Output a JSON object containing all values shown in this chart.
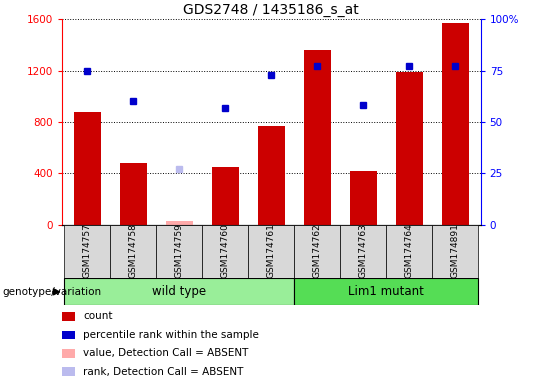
{
  "title": "GDS2748 / 1435186_s_at",
  "samples": [
    "GSM174757",
    "GSM174758",
    "GSM174759",
    "GSM174760",
    "GSM174761",
    "GSM174762",
    "GSM174763",
    "GSM174764",
    "GSM174891"
  ],
  "count": [
    880,
    480,
    30,
    450,
    770,
    1360,
    420,
    1190,
    1570
  ],
  "percentile": [
    75,
    60,
    27,
    57,
    73,
    77,
    58,
    77,
    77
  ],
  "absent": [
    false,
    false,
    true,
    false,
    false,
    false,
    false,
    false,
    false
  ],
  "wild_type_indices": [
    0,
    1,
    2,
    3,
    4
  ],
  "lim1_mutant_indices": [
    5,
    6,
    7,
    8
  ],
  "ylim_left": [
    0,
    1600
  ],
  "ylim_right": [
    0,
    100
  ],
  "yticks_left": [
    0,
    400,
    800,
    1200,
    1600
  ],
  "yticks_right": [
    0,
    25,
    50,
    75,
    100
  ],
  "bar_color_normal": "#cc0000",
  "bar_color_absent": "#ffaaaa",
  "rank_color_normal": "#0000cc",
  "rank_color_absent": "#bbbbee",
  "bg_color": "#d8d8d8",
  "wt_color": "#99ee99",
  "mut_color": "#55dd55",
  "legend_items": [
    {
      "color": "#cc0000",
      "label": "count"
    },
    {
      "color": "#0000cc",
      "label": "percentile rank within the sample"
    },
    {
      "color": "#ffaaaa",
      "label": "value, Detection Call = ABSENT"
    },
    {
      "color": "#bbbbee",
      "label": "rank, Detection Call = ABSENT"
    }
  ]
}
